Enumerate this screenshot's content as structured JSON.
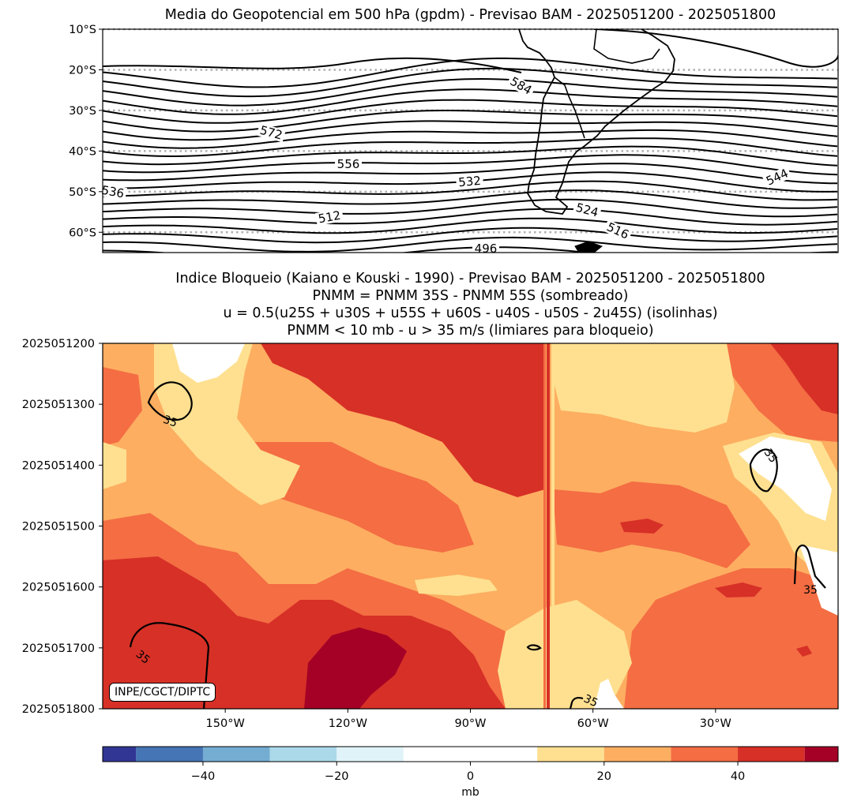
{
  "chart_data": [
    {
      "type": "contour-map",
      "title": "Media do Geopotencial em 500 hPa (gpdm) - Previsao BAM - 2025051200 - 2025051800",
      "ylim": [
        -65,
        -10
      ],
      "y_ticks": [
        "10°S",
        "20°S",
        "30°S",
        "40°S",
        "50°S",
        "60°S"
      ],
      "gridlines": "dotted, gray, at each latitude tick",
      "contour_labels": [
        "584",
        "572",
        "556",
        "532",
        "544",
        "536",
        "512",
        "524",
        "516",
        "496"
      ],
      "contour_interval_gpdm": 4
    },
    {
      "type": "heatmap",
      "title_lines": [
        "Indice Bloqueio (Kaiano e Kouski - 1990) - Previsao BAM - 2025051200 - 2025051800",
        "PNMM = PNMM 35S - PNMM 55S (sombreado)",
        "u = 0.5(u25S + u30S + u55S + u60S - u40S - u50S - 2u45S) (isolinhas)",
        "PNMM < 10 mb - u > 35 m/s (limiares para bloqueio)"
      ],
      "y_ticks": [
        "2025051200",
        "2025051300",
        "2025051400",
        "2025051500",
        "2025051600",
        "2025051700",
        "2025051800"
      ],
      "x_ticks": [
        "150°W",
        "120°W",
        "90°W",
        "60°W",
        "30°W"
      ],
      "xlim_deg_lon": [
        -180,
        0
      ],
      "contour_level": "35",
      "watermark": "INPE/CGCT/DIPTC"
    }
  ],
  "colorbar": {
    "label": "mb",
    "range": [
      -55,
      55
    ],
    "levels": [
      -55,
      -50,
      -40,
      -30,
      -20,
      -10,
      10,
      20,
      30,
      40,
      50,
      55
    ],
    "colors": [
      "#313695",
      "#4575b4",
      "#74add1",
      "#abd9e9",
      "#e0f3f8",
      "#ffffff",
      "#fee090",
      "#fdae61",
      "#f46d43",
      "#d73027",
      "#a50026"
    ],
    "ticks": [
      "−40",
      "−20",
      "0",
      "20",
      "40"
    ]
  },
  "palette": {
    "white": "#ffffff",
    "c10": "#fee090",
    "c20": "#fdae61",
    "c30": "#f46d43",
    "c40": "#d73027",
    "c50": "#a50026"
  }
}
